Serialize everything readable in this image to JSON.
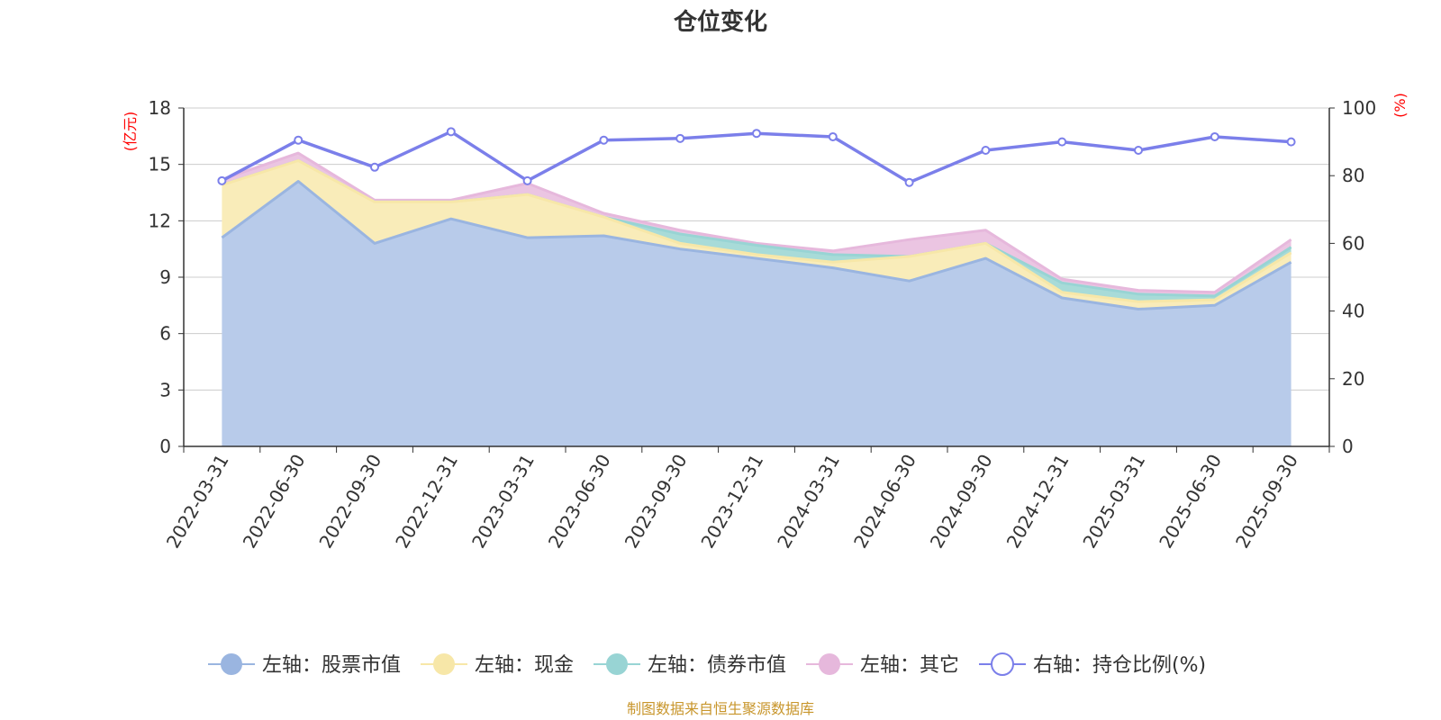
{
  "chart_data": {
    "type": "area",
    "title": "仓位变化",
    "left_axis": {
      "unit": "(亿元)",
      "ylim": [
        0,
        18
      ],
      "ticks": [
        "0",
        "3",
        "6",
        "9",
        "12",
        "15",
        "18"
      ]
    },
    "right_axis": {
      "unit": "(%)",
      "ylim": [
        0,
        100
      ],
      "ticks": [
        "0",
        "20",
        "40",
        "60",
        "80",
        "100"
      ]
    },
    "categories": [
      "2022-03-31",
      "2022-06-30",
      "2022-09-30",
      "2022-12-31",
      "2023-03-31",
      "2023-06-30",
      "2023-09-30",
      "2023-12-31",
      "2024-03-31",
      "2024-06-30",
      "2024-09-30",
      "2024-12-31",
      "2025-03-31",
      "2025-06-30",
      "2025-09-30"
    ],
    "series": [
      {
        "name": "左轴：股票市值",
        "axis": "left",
        "kind": "stack",
        "color": "#9ab5e0",
        "fill": "#b8cbea",
        "values": [
          11.1,
          14.1,
          10.8,
          12.1,
          11.1,
          11.2,
          10.5,
          10.0,
          9.5,
          8.8,
          10.0,
          7.9,
          7.3,
          7.5,
          9.8
        ]
      },
      {
        "name": "左轴：现金",
        "axis": "left",
        "kind": "stack",
        "color": "#f7e7a8",
        "fill": "#f9ecb9",
        "values": [
          2.8,
          1.1,
          2.2,
          0.9,
          2.3,
          1.0,
          0.3,
          0.2,
          0.3,
          1.3,
          0.8,
          0.3,
          0.4,
          0.3,
          0.5
        ]
      },
      {
        "name": "左轴：债券市值",
        "axis": "left",
        "kind": "stack",
        "color": "#98d4d4",
        "fill": "#a8dbd8",
        "values": [
          0.0,
          0.0,
          0.0,
          0.0,
          0.0,
          0.0,
          0.5,
          0.5,
          0.4,
          0.0,
          0.0,
          0.5,
          0.4,
          0.2,
          0.3
        ]
      },
      {
        "name": "左轴：其它",
        "axis": "left",
        "kind": "stack",
        "color": "#e6b8dc",
        "fill": "#ebc5e2",
        "values": [
          0.3,
          0.4,
          0.1,
          0.1,
          0.6,
          0.2,
          0.2,
          0.1,
          0.2,
          0.9,
          0.7,
          0.2,
          0.2,
          0.2,
          0.4
        ]
      },
      {
        "name": "右轴：持仓比例(%)",
        "axis": "right",
        "kind": "line",
        "color": "#7b7fea",
        "values": [
          78.5,
          90.5,
          82.5,
          93.0,
          78.5,
          90.5,
          91.0,
          92.5,
          91.5,
          78.0,
          87.5,
          90.0,
          87.5,
          91.5,
          90.0
        ]
      }
    ],
    "legend_position": "bottom",
    "grid": true
  },
  "source_note": "制图数据来自恒生聚源数据库"
}
